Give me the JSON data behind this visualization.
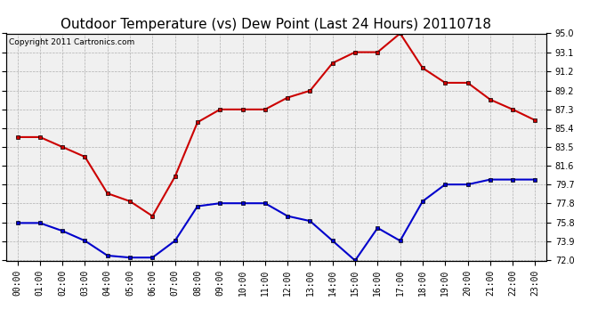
{
  "title": "Outdoor Temperature (vs) Dew Point (Last 24 Hours) 20110718",
  "copyright": "Copyright 2011 Cartronics.com",
  "hours": [
    "00:00",
    "01:00",
    "02:00",
    "03:00",
    "04:00",
    "05:00",
    "06:00",
    "07:00",
    "08:00",
    "09:00",
    "10:00",
    "11:00",
    "12:00",
    "13:00",
    "14:00",
    "15:00",
    "16:00",
    "17:00",
    "18:00",
    "19:00",
    "20:00",
    "21:00",
    "22:00",
    "23:00"
  ],
  "temp": [
    84.5,
    84.5,
    83.5,
    82.5,
    78.8,
    78.0,
    76.5,
    80.5,
    86.0,
    87.3,
    87.3,
    87.3,
    88.5,
    89.2,
    92.0,
    93.1,
    93.1,
    95.0,
    91.5,
    90.0,
    90.0,
    88.3,
    87.3,
    86.2
  ],
  "dew": [
    75.8,
    75.8,
    75.0,
    74.0,
    72.5,
    72.3,
    72.3,
    74.0,
    77.5,
    77.8,
    77.8,
    77.8,
    76.5,
    76.0,
    74.0,
    72.0,
    75.3,
    74.0,
    78.0,
    79.7,
    79.7,
    80.2,
    80.2,
    80.2
  ],
  "temp_color": "#cc0000",
  "dew_color": "#0000cc",
  "bg_color": "#ffffff",
  "plot_bg_color": "#f0f0f0",
  "grid_color": "#aaaaaa",
  "ylim": [
    72.0,
    95.0
  ],
  "yticks": [
    72.0,
    73.9,
    75.8,
    77.8,
    79.7,
    81.6,
    83.5,
    85.4,
    87.3,
    89.2,
    91.2,
    93.1,
    95.0
  ],
  "title_fontsize": 11,
  "copyright_fontsize": 6.5,
  "tick_fontsize": 7,
  "line_width": 1.5,
  "marker": "s",
  "marker_size": 3
}
